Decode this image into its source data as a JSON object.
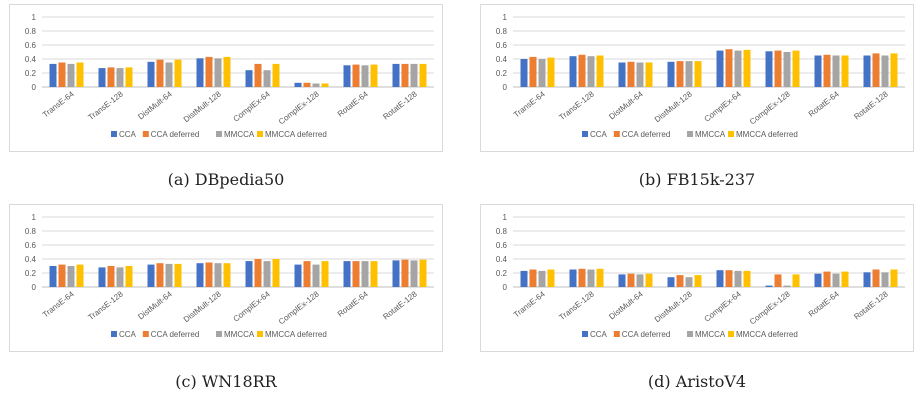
{
  "series_colors": [
    "#4472C4",
    "#ED7D31",
    "#A5A5A5",
    "#FFC000"
  ],
  "chart_data": [
    {
      "type": "bar",
      "caption": "(a) DBpedia50",
      "categories": [
        "TransE-64",
        "TransE-128",
        "DistMult-64",
        "DistMult-128",
        "ComplEx-64",
        "ComplEx-128",
        "RotatE-64",
        "RotatE-128"
      ],
      "yticks": [
        "0",
        "0.2",
        "0.4",
        "0.6",
        "0.8",
        "1"
      ],
      "ylim": [
        0,
        1
      ],
      "grid": true,
      "legend": "bottom",
      "series": [
        {
          "name": "CCA",
          "values": [
            0.33,
            0.27,
            0.36,
            0.41,
            0.24,
            0.06,
            0.31,
            0.33
          ]
        },
        {
          "name": "CCA deferred",
          "values": [
            0.35,
            0.28,
            0.39,
            0.43,
            0.33,
            0.06,
            0.32,
            0.33
          ]
        },
        {
          "name": "MMCCA",
          "values": [
            0.33,
            0.27,
            0.35,
            0.41,
            0.24,
            0.05,
            0.31,
            0.33
          ]
        },
        {
          "name": "MMCCA deferred",
          "values": [
            0.35,
            0.28,
            0.39,
            0.43,
            0.33,
            0.05,
            0.32,
            0.33
          ]
        }
      ]
    },
    {
      "type": "bar",
      "caption": "(b) FB15k-237",
      "categories": [
        "TransE-64",
        "TransE-128",
        "DistMult-64",
        "DistMult-128",
        "ComplEx-64",
        "ComplEx-128",
        "RotatE-64",
        "RotatE-128"
      ],
      "yticks": [
        "0",
        "0.2",
        "0.4",
        "0.6",
        "0.8",
        "1"
      ],
      "ylim": [
        0,
        1
      ],
      "grid": true,
      "legend": "bottom",
      "series": [
        {
          "name": "CCA",
          "values": [
            0.4,
            0.44,
            0.35,
            0.36,
            0.52,
            0.51,
            0.45,
            0.45
          ]
        },
        {
          "name": "CCA deferred",
          "values": [
            0.43,
            0.46,
            0.36,
            0.37,
            0.54,
            0.52,
            0.46,
            0.48
          ]
        },
        {
          "name": "MMCCA",
          "values": [
            0.4,
            0.44,
            0.35,
            0.37,
            0.52,
            0.5,
            0.45,
            0.45
          ]
        },
        {
          "name": "MMCCA deferred",
          "values": [
            0.42,
            0.45,
            0.35,
            0.37,
            0.53,
            0.52,
            0.45,
            0.48
          ]
        }
      ]
    },
    {
      "type": "bar",
      "caption": "(c) WN18RR",
      "categories": [
        "TransE-64",
        "TransE-128",
        "DistMult-64",
        "DistMult-128",
        "ComplEx-64",
        "ComplEx-128",
        "RotatE-64",
        "RotatE-128"
      ],
      "yticks": [
        "0",
        "0.2",
        "0.4",
        "0.6",
        "0.8",
        "1"
      ],
      "ylim": [
        0,
        1
      ],
      "grid": true,
      "legend": "bottom",
      "series": [
        {
          "name": "CCA",
          "values": [
            0.3,
            0.28,
            0.32,
            0.34,
            0.37,
            0.32,
            0.37,
            0.38
          ]
        },
        {
          "name": "CCA deferred",
          "values": [
            0.32,
            0.3,
            0.34,
            0.35,
            0.4,
            0.37,
            0.37,
            0.39
          ]
        },
        {
          "name": "MMCCA",
          "values": [
            0.3,
            0.28,
            0.33,
            0.34,
            0.37,
            0.32,
            0.37,
            0.38
          ]
        },
        {
          "name": "MMCCA deferred",
          "values": [
            0.32,
            0.3,
            0.33,
            0.34,
            0.4,
            0.37,
            0.37,
            0.39
          ]
        }
      ]
    },
    {
      "type": "bar",
      "caption": "(d) AristoV4",
      "categories": [
        "TransE-64",
        "TransE-128",
        "DistMult-64",
        "DistMult-128",
        "ComplEx-64",
        "ComplEx-128",
        "RotatE-64",
        "RotatE-128"
      ],
      "yticks": [
        "0",
        "0.2",
        "0.4",
        "0.6",
        "0.8",
        "1"
      ],
      "ylim": [
        0,
        1
      ],
      "grid": true,
      "legend": "bottom",
      "series": [
        {
          "name": "CCA",
          "values": [
            0.23,
            0.25,
            0.18,
            0.14,
            0.24,
            0.02,
            0.19,
            0.21
          ]
        },
        {
          "name": "CCA deferred",
          "values": [
            0.25,
            0.26,
            0.19,
            0.17,
            0.24,
            0.18,
            0.22,
            0.25
          ]
        },
        {
          "name": "MMCCA",
          "values": [
            0.23,
            0.25,
            0.18,
            0.14,
            0.23,
            0.02,
            0.19,
            0.21
          ]
        },
        {
          "name": "MMCCA deferred",
          "values": [
            0.25,
            0.26,
            0.19,
            0.17,
            0.23,
            0.18,
            0.22,
            0.25
          ]
        }
      ]
    }
  ]
}
